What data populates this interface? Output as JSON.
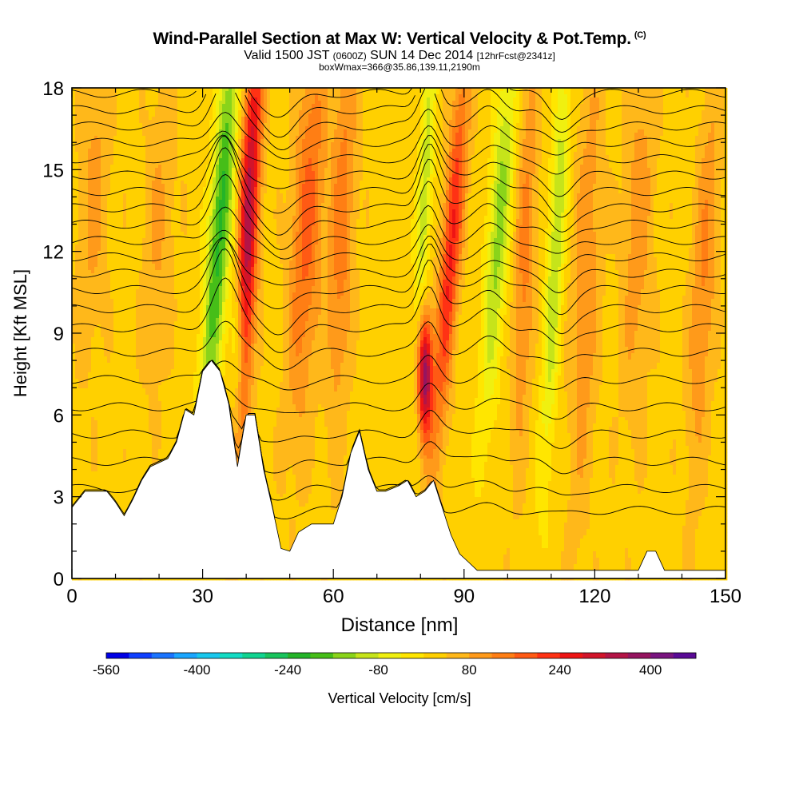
{
  "header": {
    "title": "Wind-Parallel Section at Max W: Vertical Velocity & Pot.Temp.",
    "copyright_mark": "(C)",
    "valid_prefix": "Valid 1500 JST",
    "valid_utc": "(0600Z)",
    "valid_date": "SUN 14 Dec 2014",
    "forecast_info": "[12hrFcst@2341z]",
    "box_info": "boxWmax=366@35.86,139.11,2190m"
  },
  "chart_data": {
    "type": "heatmap",
    "xlabel": "Distance [nm]",
    "ylabel": "Height [Kft MSL]",
    "xlim": [
      0,
      150
    ],
    "ylim": [
      0,
      18
    ],
    "x_ticks": [
      "0",
      "30",
      "60",
      "90",
      "120",
      "150"
    ],
    "y_ticks": [
      "0",
      "3",
      "6",
      "9",
      "12",
      "15",
      "18"
    ],
    "colorbar": {
      "label": "Vertical Velocity [cm/s]",
      "tick_labels": [
        "-560",
        "-400",
        "-240",
        "-80",
        "80",
        "240",
        "400"
      ],
      "tick_values": [
        -560,
        -400,
        -240,
        -80,
        80,
        240,
        400
      ],
      "min": -560,
      "max": 480,
      "step": 40,
      "colors": [
        "#0000e6",
        "#1040ff",
        "#1a74ff",
        "#1aa6ff",
        "#18c8ee",
        "#12dcc4",
        "#10d490",
        "#18c45c",
        "#24b428",
        "#46be18",
        "#8ad41a",
        "#c6e41a",
        "#f0f010",
        "#ffe600",
        "#ffd000",
        "#ffb81a",
        "#ff9a1a",
        "#ff7e14",
        "#ff5a14",
        "#ff3214",
        "#ee1414",
        "#d2142a",
        "#b41446",
        "#961460",
        "#7a1480",
        "#5a0a96"
      ]
    },
    "terrain_kft": [
      [
        0,
        2.6
      ],
      [
        3,
        3.2
      ],
      [
        8,
        3.2
      ],
      [
        10,
        2.8
      ],
      [
        12,
        2.3
      ],
      [
        14,
        2.9
      ],
      [
        16,
        3.6
      ],
      [
        18,
        4.1
      ],
      [
        22,
        4.4
      ],
      [
        24,
        5.0
      ],
      [
        26,
        6.2
      ],
      [
        28,
        6.0
      ],
      [
        30,
        7.6
      ],
      [
        32,
        8.0
      ],
      [
        34,
        7.6
      ],
      [
        36,
        6.4
      ],
      [
        38,
        4.1
      ],
      [
        40,
        6.0
      ],
      [
        42,
        6.0
      ],
      [
        44,
        4.0
      ],
      [
        46,
        2.6
      ],
      [
        48,
        1.1
      ],
      [
        50,
        1.0
      ],
      [
        52,
        1.7
      ],
      [
        55,
        2.0
      ],
      [
        58,
        2.0
      ],
      [
        60,
        2.0
      ],
      [
        62,
        3.0
      ],
      [
        64,
        4.6
      ],
      [
        66,
        5.4
      ],
      [
        68,
        4.0
      ],
      [
        70,
        3.2
      ],
      [
        72,
        3.2
      ],
      [
        75,
        3.4
      ],
      [
        77,
        3.6
      ],
      [
        79,
        3.0
      ],
      [
        81,
        3.2
      ],
      [
        83,
        3.6
      ],
      [
        85,
        2.6
      ],
      [
        87,
        1.6
      ],
      [
        89,
        0.9
      ],
      [
        91,
        0.6
      ],
      [
        93,
        0.3
      ],
      [
        96,
        0.3
      ],
      [
        100,
        0.3
      ],
      [
        110,
        0.3
      ],
      [
        120,
        0.3
      ],
      [
        130,
        0.3
      ],
      [
        132,
        1.0
      ],
      [
        134,
        1.0
      ],
      [
        136,
        0.3
      ],
      [
        140,
        0.3
      ],
      [
        145,
        0.3
      ],
      [
        150,
        0.3
      ]
    ],
    "w_centers": [
      {
        "x": 34.0,
        "z": 13.0,
        "w": -240,
        "sx": 1.8,
        "sz": 5.5,
        "tilt": 0.45
      },
      {
        "x": 40.5,
        "z": 13.0,
        "w": 320,
        "sx": 1.6,
        "sz": 5.5,
        "tilt": 0.25
      },
      {
        "x": 38.0,
        "z": 8.5,
        "w": -160,
        "sx": 1.2,
        "sz": 2.0,
        "tilt": 0.0
      },
      {
        "x": 54.0,
        "z": 13.0,
        "w": 150,
        "sx": 2.5,
        "sz": 5.0,
        "tilt": 0.3
      },
      {
        "x": 62.0,
        "z": 13.0,
        "w": 120,
        "sx": 2.0,
        "sz": 5.0,
        "tilt": 0.2
      },
      {
        "x": 81.0,
        "z": 14.0,
        "w": -130,
        "sx": 1.2,
        "sz": 4.5,
        "tilt": 0.3
      },
      {
        "x": 87.0,
        "z": 12.0,
        "w": 220,
        "sx": 1.6,
        "sz": 5.0,
        "tilt": 0.45
      },
      {
        "x": 81.0,
        "z": 7.5,
        "w": 366,
        "sx": 1.2,
        "sz": 1.6,
        "tilt": 0.0
      },
      {
        "x": 98.0,
        "z": 13.0,
        "w": -160,
        "sx": 1.8,
        "sz": 5.0,
        "tilt": 0.4
      },
      {
        "x": 111.0,
        "z": 12.0,
        "w": -140,
        "sx": 1.4,
        "sz": 6.0,
        "tilt": 0.3
      },
      {
        "x": 104.0,
        "z": 12.0,
        "w": 110,
        "sx": 1.6,
        "sz": 5.0,
        "tilt": 0.2
      },
      {
        "x": 118.0,
        "z": 11.0,
        "w": 90,
        "sx": 2.2,
        "sz": 6.0,
        "tilt": 0.2
      },
      {
        "x": 130.0,
        "z": 13.0,
        "w": 80,
        "sx": 2.5,
        "sz": 5.0,
        "tilt": 0.2
      },
      {
        "x": 145.0,
        "z": 11.0,
        "w": 100,
        "sx": 2.0,
        "sz": 5.0,
        "tilt": 0.3
      },
      {
        "x": 5.0,
        "z": 14.0,
        "w": 70,
        "sx": 2.5,
        "sz": 4.0,
        "tilt": 0.2
      },
      {
        "x": 20.0,
        "z": 13.0,
        "w": 60,
        "sx": 2.5,
        "sz": 4.0,
        "tilt": 0.2
      }
    ],
    "theta_contours": {
      "levels_kft": [
        2.5,
        3.3,
        4.3,
        5.3,
        6.3,
        7.3,
        8.3,
        9.2,
        9.9,
        10.6,
        11.2,
        11.8,
        12.4,
        13.0,
        13.6,
        14.2,
        14.8,
        15.4,
        16.0,
        16.6,
        17.2,
        17.8
      ],
      "waves": [
        {
          "x": 35.0,
          "amp": 1.6,
          "width": 4.0
        },
        {
          "x": 48.0,
          "amp": -0.7,
          "width": 5.0
        },
        {
          "x": 82.0,
          "amp": 1.5,
          "width": 3.0
        },
        {
          "x": 96.0,
          "amp": 0.6,
          "width": 4.0
        },
        {
          "x": 112.0,
          "amp": -0.7,
          "width": 4.0
        }
      ]
    }
  }
}
